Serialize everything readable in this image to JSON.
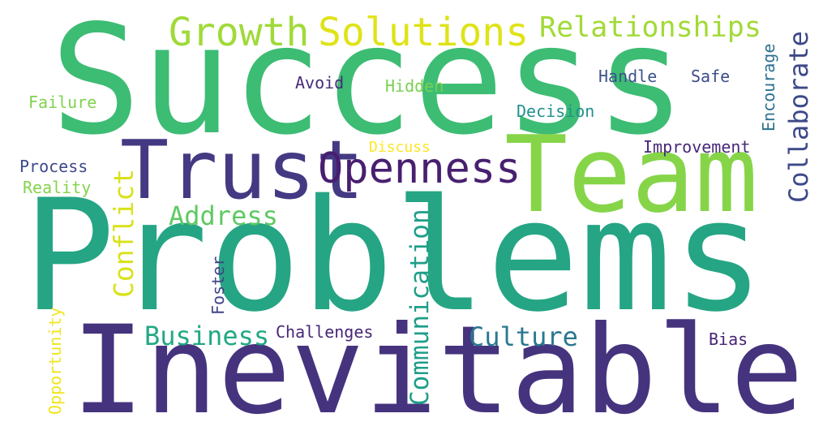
{
  "words": [
    {
      "text": "Success",
      "color": "#3dbc74"
    },
    {
      "text": "Problems",
      "color": "#25a584"
    },
    {
      "text": "Inevitable",
      "color": "#46337e"
    },
    {
      "text": "Team",
      "color": "#86d549"
    },
    {
      "text": "Trust",
      "color": "#443a83"
    },
    {
      "text": "Openness",
      "color": "#481f70"
    },
    {
      "text": "Growth",
      "color": "#a0da39"
    },
    {
      "text": "Solutions",
      "color": "#dfe318"
    },
    {
      "text": "Relationships",
      "color": "#a2da37"
    },
    {
      "text": "Collaborate",
      "color": "#3e4989"
    },
    {
      "text": "Encourage",
      "color": "#2c718e"
    },
    {
      "text": "Avoid",
      "color": "#472c7a"
    },
    {
      "text": "Hidden",
      "color": "#7ad151"
    },
    {
      "text": "Handle",
      "color": "#3b528b"
    },
    {
      "text": "Safe",
      "color": "#3e4c8a"
    },
    {
      "text": "Decision",
      "color": "#21918c"
    },
    {
      "text": "Failure",
      "color": "#7fd34e"
    },
    {
      "text": "Discuss",
      "color": "#fde725"
    },
    {
      "text": "Improvement",
      "color": "#482878"
    },
    {
      "text": "Process",
      "color": "#3e4989"
    },
    {
      "text": "Reality",
      "color": "#84d44b"
    },
    {
      "text": "Conflict",
      "color": "#d8e219"
    },
    {
      "text": "Address",
      "color": "#5ec962"
    },
    {
      "text": "Communication",
      "color": "#1f9e89"
    },
    {
      "text": "Foster",
      "color": "#414487"
    },
    {
      "text": "Business",
      "color": "#22a884"
    },
    {
      "text": "Challenges",
      "color": "#482677"
    },
    {
      "text": "Culture",
      "color": "#2a788e"
    },
    {
      "text": "Bias",
      "color": "#482475"
    },
    {
      "text": "Opportunity",
      "color": "#f1e51d"
    }
  ]
}
